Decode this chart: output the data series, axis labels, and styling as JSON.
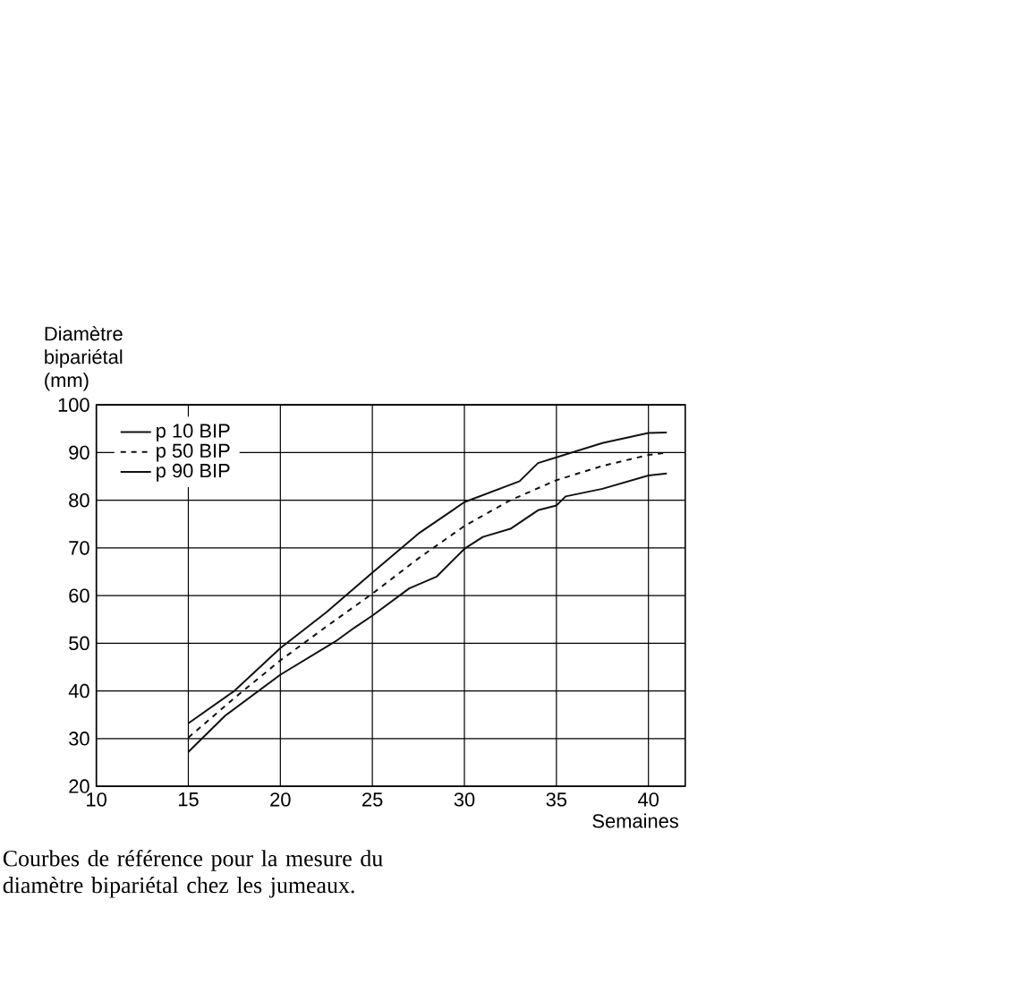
{
  "chart_data": {
    "type": "line",
    "xlabel": "Semaines",
    "ylabel": "Diamètre bipariétal (mm)",
    "annotations": [
      "Courbes de référence pour la mesure du diamètre bipariétal chez les jumeaux."
    ],
    "xlim": [
      10,
      42
    ],
    "ylim": [
      20,
      100
    ],
    "xticks": [
      10,
      15,
      20,
      25,
      30,
      35,
      40
    ],
    "yticks": [
      20,
      30,
      40,
      50,
      60,
      70,
      80,
      90,
      100
    ],
    "grid": true,
    "legend": "top left",
    "marker": "none",
    "series": [
      {
        "name": "p 10 BIP",
        "color": "#111111",
        "line_style": "solid",
        "x": [
          15,
          17,
          20,
          23,
          24,
          25,
          27,
          28.5,
          30,
          31,
          32.5,
          34,
          35,
          35.5,
          37.5,
          40,
          41
        ],
        "values": [
          27.2,
          34.8,
          43.4,
          50.4,
          53.2,
          55.8,
          61.5,
          64,
          69.8,
          72.3,
          74,
          77.9,
          78.9,
          80.8,
          82.4,
          85.2,
          85.6
        ]
      },
      {
        "name": "p 50 BIP",
        "color": "#111111",
        "line_style": "dashed",
        "x": [
          15,
          17.5,
          20,
          22.5,
          25,
          27.5,
          30,
          32.5,
          35,
          37.5,
          40,
          41
        ],
        "values": [
          30.2,
          38.5,
          46.4,
          53.5,
          60.4,
          67.8,
          74.6,
          80,
          84.2,
          87.2,
          89.5,
          90
        ]
      },
      {
        "name": "p 90 BIP",
        "color": "#111111",
        "line_style": "solid",
        "x": [
          15,
          17.5,
          20,
          22.5,
          25,
          27.5,
          30,
          33,
          34,
          35,
          37.5,
          40,
          41
        ],
        "values": [
          33.2,
          40,
          49,
          56.5,
          64.8,
          73,
          79.6,
          84,
          87.8,
          89,
          92,
          94.1,
          94.2
        ]
      }
    ]
  }
}
